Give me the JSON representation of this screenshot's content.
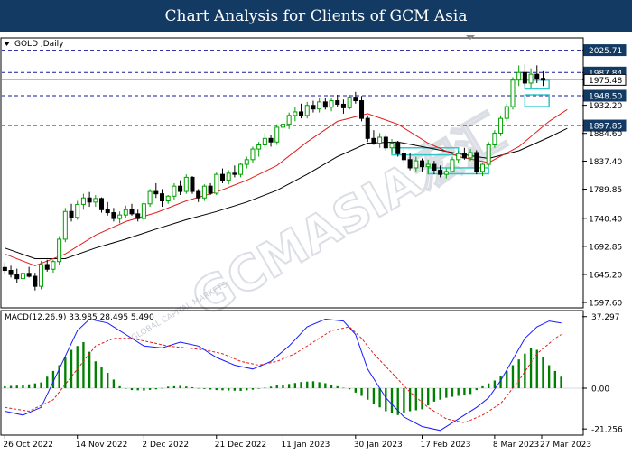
{
  "header": {
    "title": "Chart Analysis for Clients of GCM Asia"
  },
  "watermark": {
    "text": "GCMASIA宏汇",
    "subtext": "GLOBAL CAPITAL MARKETS"
  },
  "chart_data": [
    {
      "type": "candlestick",
      "title": "GOLD ,Daily",
      "yticks": [
        "2025.71",
        "1987.84",
        "1975.48",
        "1948.50",
        "1932.20",
        "1897.85",
        "1884.60",
        "1837.40",
        "1789.85",
        "1740.40",
        "1692.85",
        "1645.20",
        "1597.60"
      ],
      "ylim": [
        1590,
        2045
      ],
      "xticks": [
        "26 Oct 2022",
        "14 Nov 2022",
        "2 Dec 2022",
        "21 Dec 2022",
        "11 Jan 2023",
        "30 Jan 2023",
        "17 Feb 2023",
        "8 Mar 2023",
        "27 Mar 2023"
      ],
      "current_price": "1975.48",
      "levels": [
        {
          "label": "2025.71",
          "value": 2025.71
        },
        {
          "label": "1987.84",
          "value": 1987.84
        },
        {
          "label": "1948.50",
          "value": 1948.5
        },
        {
          "label": "1897.85",
          "value": 1897.85
        }
      ],
      "colors": {
        "bull": "#00a000",
        "bear": "#000000",
        "ma_fast": "#e02020",
        "ma_slow": "#000000",
        "level": "#1a1a9a",
        "zone": "#30c8c8",
        "label_bg": "#123a63"
      },
      "candles": [
        [
          1657,
          1665,
          1645,
          1652
        ],
        [
          1652,
          1660,
          1640,
          1645
        ],
        [
          1645,
          1655,
          1630,
          1638
        ],
        [
          1638,
          1650,
          1628,
          1647
        ],
        [
          1647,
          1658,
          1640,
          1642
        ],
        [
          1642,
          1648,
          1618,
          1625
        ],
        [
          1625,
          1668,
          1620,
          1662
        ],
        [
          1662,
          1670,
          1650,
          1654
        ],
        [
          1654,
          1670,
          1648,
          1667
        ],
        [
          1667,
          1710,
          1662,
          1705
        ],
        [
          1705,
          1758,
          1700,
          1752
        ],
        [
          1752,
          1765,
          1735,
          1742
        ],
        [
          1742,
          1770,
          1738,
          1764
        ],
        [
          1764,
          1782,
          1755,
          1775
        ],
        [
          1775,
          1785,
          1760,
          1768
        ],
        [
          1768,
          1780,
          1760,
          1774
        ],
        [
          1774,
          1776,
          1750,
          1755
        ],
        [
          1755,
          1768,
          1745,
          1750
        ],
        [
          1750,
          1758,
          1735,
          1740
        ],
        [
          1740,
          1752,
          1732,
          1746
        ],
        [
          1746,
          1762,
          1740,
          1755
        ],
        [
          1755,
          1765,
          1745,
          1748
        ],
        [
          1748,
          1755,
          1735,
          1740
        ],
        [
          1740,
          1770,
          1735,
          1765
        ],
        [
          1765,
          1790,
          1760,
          1786
        ],
        [
          1786,
          1800,
          1775,
          1782
        ],
        [
          1782,
          1790,
          1760,
          1770
        ],
        [
          1770,
          1780,
          1765,
          1778
        ],
        [
          1778,
          1800,
          1772,
          1795
        ],
        [
          1795,
          1805,
          1780,
          1786
        ],
        [
          1786,
          1815,
          1782,
          1810
        ],
        [
          1810,
          1812,
          1782,
          1786
        ],
        [
          1786,
          1790,
          1768,
          1775
        ],
        [
          1775,
          1798,
          1770,
          1795
        ],
        [
          1795,
          1800,
          1780,
          1783
        ],
        [
          1783,
          1818,
          1780,
          1815
        ],
        [
          1815,
          1825,
          1800,
          1805
        ],
        [
          1805,
          1822,
          1798,
          1817
        ],
        [
          1817,
          1830,
          1810,
          1815
        ],
        [
          1815,
          1835,
          1810,
          1832
        ],
        [
          1832,
          1845,
          1825,
          1840
        ],
        [
          1840,
          1862,
          1835,
          1858
        ],
        [
          1858,
          1870,
          1845,
          1865
        ],
        [
          1865,
          1885,
          1860,
          1876
        ],
        [
          1876,
          1882,
          1862,
          1870
        ],
        [
          1870,
          1900,
          1865,
          1895
        ],
        [
          1895,
          1905,
          1880,
          1900
        ],
        [
          1900,
          1920,
          1892,
          1915
        ],
        [
          1915,
          1930,
          1905,
          1921
        ],
        [
          1921,
          1935,
          1910,
          1915
        ],
        [
          1915,
          1938,
          1910,
          1932
        ],
        [
          1932,
          1940,
          1920,
          1926
        ],
        [
          1926,
          1945,
          1920,
          1938
        ],
        [
          1938,
          1945,
          1925,
          1929
        ],
        [
          1929,
          1945,
          1922,
          1940
        ],
        [
          1940,
          1950,
          1930,
          1934
        ],
        [
          1934,
          1942,
          1918,
          1928
        ],
        [
          1928,
          1950,
          1925,
          1946
        ],
        [
          1946,
          1955,
          1935,
          1940
        ],
        [
          1940,
          1948,
          1905,
          1910
        ],
        [
          1910,
          1915,
          1870,
          1876
        ],
        [
          1876,
          1890,
          1865,
          1868
        ],
        [
          1868,
          1885,
          1860,
          1878
        ],
        [
          1878,
          1882,
          1855,
          1860
        ],
        [
          1860,
          1875,
          1852,
          1868
        ],
        [
          1868,
          1872,
          1845,
          1850
        ],
        [
          1850,
          1858,
          1835,
          1840
        ],
        [
          1840,
          1852,
          1822,
          1826
        ],
        [
          1826,
          1845,
          1820,
          1838
        ],
        [
          1838,
          1842,
          1820,
          1828
        ],
        [
          1828,
          1840,
          1815,
          1832
        ],
        [
          1832,
          1838,
          1815,
          1822
        ],
        [
          1822,
          1830,
          1810,
          1815
        ],
        [
          1815,
          1825,
          1808,
          1820
        ],
        [
          1820,
          1845,
          1818,
          1840
        ],
        [
          1840,
          1855,
          1835,
          1850
        ],
        [
          1850,
          1860,
          1840,
          1843
        ],
        [
          1843,
          1858,
          1838,
          1852
        ],
        [
          1852,
          1856,
          1815,
          1820
        ],
        [
          1820,
          1835,
          1812,
          1832
        ],
        [
          1832,
          1870,
          1828,
          1865
        ],
        [
          1865,
          1890,
          1860,
          1885
        ],
        [
          1885,
          1915,
          1880,
          1910
        ],
        [
          1910,
          1935,
          1905,
          1930
        ],
        [
          1930,
          1980,
          1925,
          1975
        ],
        [
          1975,
          2000,
          1965,
          1988
        ],
        [
          1988,
          2002,
          1965,
          1970
        ],
        [
          1970,
          1995,
          1962,
          1985
        ],
        [
          1985,
          2000,
          1970,
          1978
        ],
        [
          1978,
          1990,
          1965,
          1975
        ]
      ],
      "ma_fast": [
        [
          0,
          1680
        ],
        [
          5,
          1660
        ],
        [
          10,
          1680
        ],
        [
          15,
          1712
        ],
        [
          20,
          1735
        ],
        [
          25,
          1750
        ],
        [
          30,
          1770
        ],
        [
          35,
          1785
        ],
        [
          40,
          1805
        ],
        [
          45,
          1830
        ],
        [
          50,
          1870
        ],
        [
          55,
          1905
        ],
        [
          60,
          1918
        ],
        [
          65,
          1900
        ],
        [
          70,
          1868
        ],
        [
          75,
          1845
        ],
        [
          80,
          1835
        ],
        [
          85,
          1862
        ],
        [
          90,
          1905
        ],
        [
          93,
          1925
        ]
      ],
      "ma_slow": [
        [
          0,
          1690
        ],
        [
          5,
          1672
        ],
        [
          10,
          1672
        ],
        [
          15,
          1690
        ],
        [
          20,
          1705
        ],
        [
          25,
          1722
        ],
        [
          30,
          1738
        ],
        [
          35,
          1752
        ],
        [
          40,
          1768
        ],
        [
          45,
          1788
        ],
        [
          50,
          1815
        ],
        [
          55,
          1845
        ],
        [
          60,
          1868
        ],
        [
          65,
          1870
        ],
        [
          70,
          1860
        ],
        [
          75,
          1850
        ],
        [
          80,
          1842
        ],
        [
          85,
          1855
        ],
        [
          90,
          1878
        ],
        [
          93,
          1893
        ]
      ],
      "zones": [
        {
          "x0": 64,
          "x1": 75,
          "low": 1848,
          "high": 1860
        },
        {
          "x0": 70,
          "x1": 80,
          "low": 1816,
          "high": 1826
        },
        {
          "x0": 86,
          "x1": 90,
          "low": 1930,
          "high": 1950
        },
        {
          "x0": 86,
          "x1": 90,
          "low": 1960,
          "high": 1975
        }
      ]
    },
    {
      "type": "macd",
      "label": "MACD(12,26,9) 33.985 28.495 5.490",
      "yticks": [
        "37.297",
        "0.00",
        "-21.256"
      ],
      "ylim": [
        -24,
        40
      ],
      "colors": {
        "macd": "#1a1aff",
        "signal": "#e02020",
        "hist": "#008000"
      },
      "macd": [
        [
          0,
          -12
        ],
        [
          3,
          -14
        ],
        [
          6,
          -10
        ],
        [
          9,
          10
        ],
        [
          12,
          30
        ],
        [
          14,
          36
        ],
        [
          17,
          34
        ],
        [
          20,
          28
        ],
        [
          23,
          22
        ],
        [
          26,
          21
        ],
        [
          29,
          24
        ],
        [
          32,
          22
        ],
        [
          35,
          16
        ],
        [
          38,
          12
        ],
        [
          41,
          10
        ],
        [
          44,
          14
        ],
        [
          47,
          22
        ],
        [
          50,
          32
        ],
        [
          53,
          36
        ],
        [
          56,
          35
        ],
        [
          58,
          28
        ],
        [
          60,
          10
        ],
        [
          63,
          -5
        ],
        [
          66,
          -15
        ],
        [
          69,
          -20
        ],
        [
          72,
          -22
        ],
        [
          74,
          -18
        ],
        [
          76,
          -14
        ],
        [
          78,
          -10
        ],
        [
          80,
          -5
        ],
        [
          82,
          4
        ],
        [
          84,
          15
        ],
        [
          86,
          26
        ],
        [
          88,
          32
        ],
        [
          90,
          35
        ],
        [
          92,
          34
        ]
      ],
      "signal": [
        [
          0,
          -10
        ],
        [
          4,
          -12
        ],
        [
          8,
          -6
        ],
        [
          12,
          10
        ],
        [
          15,
          22
        ],
        [
          18,
          26
        ],
        [
          21,
          26
        ],
        [
          24,
          24
        ],
        [
          27,
          22
        ],
        [
          30,
          21
        ],
        [
          33,
          20
        ],
        [
          36,
          18
        ],
        [
          39,
          14
        ],
        [
          42,
          12
        ],
        [
          45,
          14
        ],
        [
          48,
          18
        ],
        [
          51,
          24
        ],
        [
          54,
          30
        ],
        [
          57,
          32
        ],
        [
          59,
          26
        ],
        [
          61,
          18
        ],
        [
          64,
          8
        ],
        [
          67,
          -2
        ],
        [
          70,
          -10
        ],
        [
          73,
          -16
        ],
        [
          76,
          -18
        ],
        [
          79,
          -14
        ],
        [
          82,
          -8
        ],
        [
          85,
          4
        ],
        [
          88,
          18
        ],
        [
          91,
          26
        ],
        [
          92,
          28
        ]
      ],
      "histogram": [
        [
          0,
          1
        ],
        [
          3,
          1.5
        ],
        [
          6,
          3
        ],
        [
          9,
          12
        ],
        [
          11,
          20
        ],
        [
          13,
          24
        ],
        [
          15,
          14
        ],
        [
          17,
          8
        ],
        [
          19,
          1
        ],
        [
          21,
          -1
        ],
        [
          23,
          -1.2
        ],
        [
          25,
          -0.6
        ],
        [
          27,
          0.8
        ],
        [
          29,
          1.2
        ],
        [
          31,
          0.5
        ],
        [
          33,
          -0.4
        ],
        [
          35,
          -1
        ],
        [
          37,
          -1.2
        ],
        [
          39,
          -1.4
        ],
        [
          41,
          -0.8
        ],
        [
          43,
          0.2
        ],
        [
          45,
          1.4
        ],
        [
          47,
          2.2
        ],
        [
          49,
          3.2
        ],
        [
          51,
          3.6
        ],
        [
          53,
          2.6
        ],
        [
          55,
          1
        ],
        [
          57,
          -0.6
        ],
        [
          59,
          -4
        ],
        [
          61,
          -8
        ],
        [
          63,
          -12
        ],
        [
          65,
          -14
        ],
        [
          67,
          -12
        ],
        [
          69,
          -11
        ],
        [
          71,
          -7
        ],
        [
          73,
          -5
        ],
        [
          75,
          -4
        ],
        [
          77,
          -3
        ],
        [
          79,
          1
        ],
        [
          81,
          4
        ],
        [
          83,
          9
        ],
        [
          85,
          15
        ],
        [
          86,
          18
        ],
        [
          87,
          21
        ],
        [
          88,
          20
        ],
        [
          89,
          16
        ],
        [
          90,
          12
        ],
        [
          91,
          9
        ],
        [
          92,
          6
        ]
      ]
    }
  ]
}
